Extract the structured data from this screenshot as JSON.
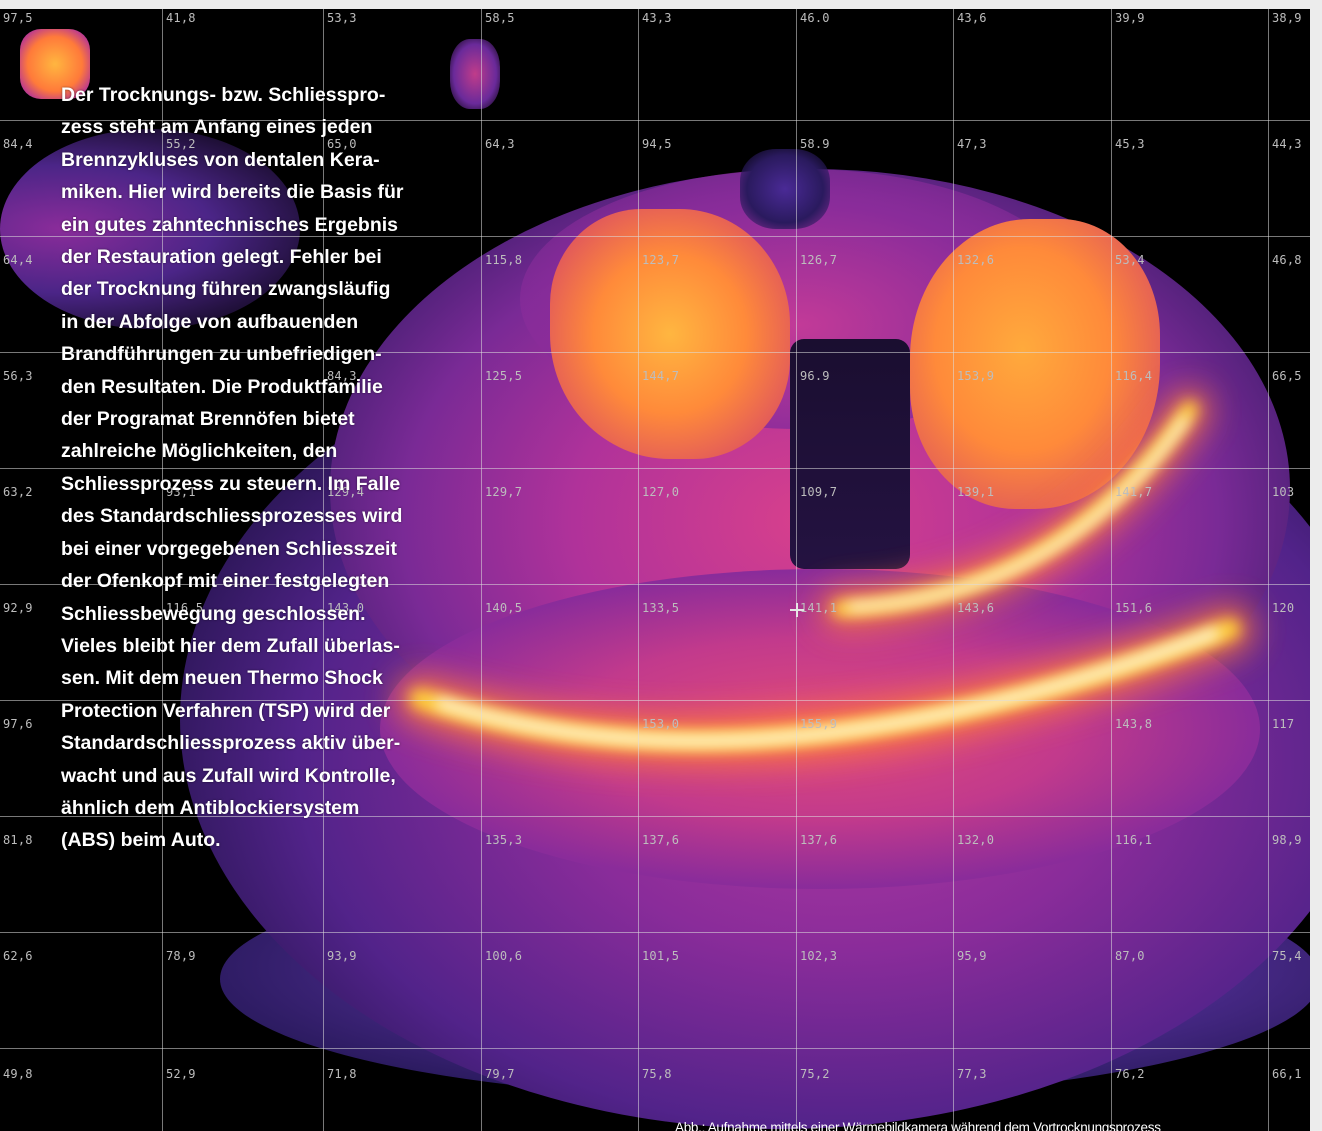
{
  "article": {
    "body_text": "Der Trocknungs- bzw. Schliesspro-\nzess steht am Anfang eines jeden\nBrennzykluses von dentalen Kera-\nmiken. Hier wird bereits die Basis für\nein gutes zahntechnisches Ergebnis\nder Restauration gelegt. Fehler bei\nder Trocknung führen zwangsläufig\nin der Abfolge von aufbauenden\nBrandführungen zu unbefriedigen-\nden Resultaten. Die Produktfamilie\nder Programat Brennöfen bietet\nzahlreiche Möglichkeiten, den\nSchliessprozess zu steuern. Im Falle\ndes Standardschliessprozesses wird\nbei einer vorgegebenen Schliesszeit\nder Ofenkopf mit einer festgelegten\nSchliessbewegung geschlossen.\nVieles bleibt hier dem Zufall überlas-\nsen. Mit dem neuen Thermo Shock\nProtection Verfahren (TSP) wird der\nStandardschliessprozess aktiv über-\nwacht und aus Zufall wird Kontrolle,\nähnlich dem Antiblockiersystem\n(ABS) beim Auto.",
    "caption": "Abb.: Aufnahme mittels einer Wärmebildkamera während dem Vortrocknungsprozess"
  },
  "thermal_image": {
    "palette": [
      "#000000",
      "#2a1a5e",
      "#6a2a9a",
      "#c23a8c",
      "#ff7a3a",
      "#ffd23a",
      "#ffffff"
    ],
    "readings": [
      [
        "97,5",
        "41,8",
        "53,3",
        "58,5",
        "43,3",
        "46.0",
        "43,6",
        "39,9",
        "38,9"
      ],
      [
        "84,4",
        "55,2",
        "65,0",
        "64,3",
        "94,5",
        "58.9",
        "47,3",
        "45,3",
        "44,3"
      ],
      [
        "64,4",
        "",
        "",
        "115,8",
        "123,7",
        "126,7",
        "132,6",
        "53,4",
        "46,8"
      ],
      [
        "56,3",
        "",
        "84,3",
        "125,5",
        "144,7",
        "96.9",
        "153,9",
        "116,4",
        "66,5"
      ],
      [
        "63,2",
        "93,1",
        "129,4",
        "129,7",
        "127,0",
        "109,7",
        "139,1",
        "141,7",
        "103"
      ],
      [
        "92,9",
        "116,5",
        "143,0",
        "140,5",
        "133,5",
        "141,1",
        "143,6",
        "151,6",
        "120"
      ],
      [
        "97,6",
        "",
        "",
        "",
        "153,0",
        "155,9",
        "",
        "143,8",
        "117"
      ],
      [
        "81,8",
        "",
        "",
        "135,3",
        "137,6",
        "137,6",
        "132,0",
        "116,1",
        "98,9"
      ],
      [
        "62,6",
        "78,9",
        "93,9",
        "100,6",
        "101,5",
        "102,3",
        "95,9",
        "87,0",
        "75,4"
      ],
      [
        "49,8",
        "52,9",
        "71,8",
        "79,7",
        "75,8",
        "75,2",
        "77,3",
        "76,2",
        "66,1"
      ]
    ]
  }
}
